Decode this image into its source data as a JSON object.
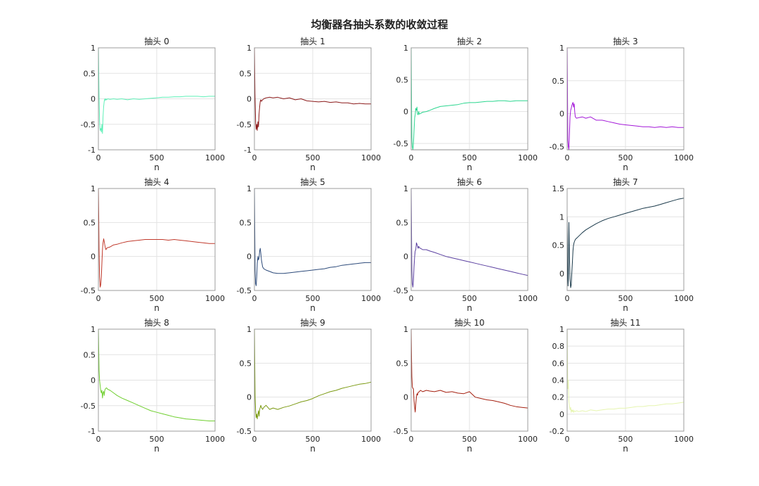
{
  "figure": {
    "title": "均衡器各抽头系数的收敛过程"
  },
  "chart_data": [
    {
      "type": "line",
      "title": "抽头 0",
      "xlabel": "n",
      "ylabel": "",
      "xlim": [
        0,
        1000
      ],
      "ylim": [
        -1,
        1
      ],
      "xticks": [
        0,
        500,
        1000
      ],
      "yticks": [
        -1,
        -0.5,
        0,
        0.5,
        1
      ],
      "grid": true,
      "color": "#5ff0b8",
      "x": [
        0,
        5,
        10,
        15,
        20,
        25,
        30,
        35,
        40,
        45,
        50,
        55,
        60,
        65,
        70,
        80,
        100,
        130,
        160,
        200,
        250,
        300,
        350,
        400,
        450,
        500,
        550,
        600,
        650,
        700,
        750,
        800,
        850,
        900,
        950,
        1000
      ],
      "y": [
        1,
        0.2,
        -0.45,
        -0.62,
        -0.58,
        -0.65,
        -0.5,
        -0.68,
        -0.35,
        -0.15,
        -0.05,
        0.0,
        -0.03,
        0.0,
        -0.02,
        0.0,
        -0.01,
        0.0,
        -0.01,
        0.0,
        -0.02,
        0.0,
        -0.01,
        0.0,
        0.01,
        0.02,
        0.03,
        0.03,
        0.04,
        0.04,
        0.05,
        0.05,
        0.05,
        0.04,
        0.05,
        0.05
      ]
    },
    {
      "type": "line",
      "title": "抽头 1",
      "xlabel": "n",
      "ylabel": "",
      "xlim": [
        0,
        1000
      ],
      "ylim": [
        -1,
        1
      ],
      "xticks": [
        0,
        500,
        1000
      ],
      "yticks": [
        -1,
        -0.5,
        0,
        0.5,
        1
      ],
      "grid": true,
      "color": "#8b1a1a",
      "x": [
        0,
        5,
        10,
        15,
        20,
        25,
        30,
        35,
        40,
        45,
        50,
        55,
        60,
        70,
        80,
        100,
        130,
        160,
        200,
        250,
        300,
        350,
        400,
        450,
        500,
        550,
        600,
        650,
        700,
        750,
        800,
        850,
        900,
        950,
        1000
      ],
      "y": [
        1,
        0.1,
        -0.45,
        -0.6,
        -0.5,
        -0.62,
        -0.45,
        -0.55,
        -0.3,
        -0.15,
        -0.05,
        -0.02,
        -0.05,
        -0.02,
        0.0,
        0.02,
        0.03,
        0.02,
        0.03,
        0.0,
        0.02,
        -0.02,
        0.0,
        -0.04,
        -0.05,
        -0.06,
        -0.05,
        -0.07,
        -0.06,
        -0.08,
        -0.08,
        -0.1,
        -0.09,
        -0.1,
        -0.1
      ]
    },
    {
      "type": "line",
      "title": "抽头 2",
      "xlabel": "n",
      "ylabel": "",
      "xlim": [
        0,
        1000
      ],
      "ylim": [
        -0.6,
        1
      ],
      "xticks": [
        0,
        500,
        1000
      ],
      "yticks": [
        -0.5,
        0,
        0.5,
        1
      ],
      "grid": true,
      "color": "#2bd68f",
      "x": [
        0,
        3,
        6,
        10,
        15,
        20,
        25,
        30,
        35,
        40,
        45,
        50,
        55,
        60,
        65,
        70,
        80,
        100,
        130,
        160,
        200,
        250,
        300,
        350,
        400,
        450,
        500,
        550,
        600,
        650,
        700,
        750,
        800,
        850,
        900,
        950,
        1000
      ],
      "y": [
        1,
        0.2,
        -0.4,
        -0.55,
        -0.6,
        -0.5,
        -0.3,
        -0.1,
        -0.05,
        0.05,
        0.02,
        0.07,
        -0.04,
        -0.05,
        0.0,
        -0.04,
        -0.03,
        -0.01,
        0.0,
        0.02,
        0.05,
        0.08,
        0.09,
        0.1,
        0.11,
        0.13,
        0.14,
        0.14,
        0.15,
        0.16,
        0.16,
        0.17,
        0.17,
        0.16,
        0.17,
        0.17,
        0.17
      ]
    },
    {
      "type": "line",
      "title": "抽头 3",
      "xlabel": "n",
      "ylabel": "",
      "xlim": [
        0,
        1000
      ],
      "ylim": [
        -0.55,
        1
      ],
      "xticks": [
        0,
        500,
        1000
      ],
      "yticks": [
        -0.5,
        0,
        0.5,
        1
      ],
      "grid": true,
      "color": "#a318d8",
      "x": [
        0,
        3,
        6,
        10,
        15,
        20,
        25,
        30,
        35,
        40,
        45,
        50,
        55,
        60,
        65,
        70,
        80,
        100,
        130,
        160,
        200,
        250,
        300,
        350,
        400,
        450,
        500,
        550,
        600,
        650,
        700,
        750,
        800,
        850,
        900,
        950,
        1000
      ],
      "y": [
        1,
        0.3,
        -0.4,
        -0.5,
        -0.55,
        -0.3,
        -0.05,
        0.05,
        0.08,
        0.12,
        0.15,
        0.17,
        0.1,
        0.15,
        0.03,
        -0.05,
        -0.07,
        -0.06,
        -0.05,
        -0.07,
        -0.05,
        -0.1,
        -0.1,
        -0.12,
        -0.14,
        -0.16,
        -0.17,
        -0.18,
        -0.19,
        -0.2,
        -0.2,
        -0.21,
        -0.2,
        -0.21,
        -0.2,
        -0.21,
        -0.21
      ]
    },
    {
      "type": "line",
      "title": "抽头 4",
      "xlabel": "n",
      "ylabel": "",
      "xlim": [
        0,
        1000
      ],
      "ylim": [
        -0.5,
        1
      ],
      "xticks": [
        0,
        500,
        1000
      ],
      "yticks": [
        -0.5,
        0,
        0.5,
        1
      ],
      "grid": true,
      "color": "#c0392b",
      "x": [
        0,
        3,
        6,
        10,
        15,
        20,
        25,
        30,
        35,
        40,
        45,
        50,
        55,
        60,
        65,
        70,
        80,
        100,
        130,
        160,
        200,
        250,
        300,
        350,
        400,
        450,
        500,
        550,
        600,
        650,
        700,
        750,
        800,
        850,
        900,
        950,
        1000
      ],
      "y": [
        1,
        0.6,
        0.1,
        -0.3,
        -0.45,
        -0.42,
        -0.3,
        -0.1,
        0.1,
        0.2,
        0.26,
        0.22,
        0.17,
        0.12,
        0.1,
        0.12,
        0.13,
        0.14,
        0.17,
        0.18,
        0.2,
        0.22,
        0.23,
        0.24,
        0.25,
        0.25,
        0.25,
        0.25,
        0.24,
        0.25,
        0.24,
        0.23,
        0.22,
        0.21,
        0.2,
        0.19,
        0.19
      ]
    },
    {
      "type": "line",
      "title": "抽头 5",
      "xlabel": "n",
      "ylabel": "",
      "xlim": [
        0,
        1000
      ],
      "ylim": [
        -0.5,
        1
      ],
      "xticks": [
        0,
        500,
        1000
      ],
      "yticks": [
        -0.5,
        0,
        0.5,
        1
      ],
      "grid": true,
      "color": "#2c4a7a",
      "x": [
        0,
        3,
        6,
        10,
        15,
        20,
        25,
        30,
        35,
        40,
        45,
        50,
        55,
        60,
        65,
        70,
        80,
        100,
        130,
        160,
        200,
        250,
        300,
        350,
        400,
        450,
        500,
        550,
        600,
        650,
        700,
        750,
        800,
        850,
        900,
        950,
        1000
      ],
      "y": [
        1,
        0.4,
        -0.2,
        -0.4,
        -0.43,
        -0.3,
        -0.1,
        0.0,
        -0.05,
        -0.02,
        0.08,
        0.12,
        0.05,
        -0.05,
        -0.1,
        -0.15,
        -0.18,
        -0.2,
        -0.22,
        -0.24,
        -0.25,
        -0.25,
        -0.24,
        -0.23,
        -0.22,
        -0.21,
        -0.2,
        -0.19,
        -0.18,
        -0.16,
        -0.15,
        -0.13,
        -0.12,
        -0.11,
        -0.1,
        -0.09,
        -0.09
      ]
    },
    {
      "type": "line",
      "title": "抽头 6",
      "xlabel": "n",
      "ylabel": "",
      "xlim": [
        0,
        1000
      ],
      "ylim": [
        -0.5,
        1
      ],
      "xticks": [
        0,
        500,
        1000
      ],
      "yticks": [
        -0.5,
        0,
        0.5,
        1
      ],
      "grid": true,
      "color": "#5a3fa0",
      "x": [
        0,
        3,
        6,
        10,
        15,
        20,
        25,
        30,
        35,
        40,
        45,
        50,
        55,
        60,
        65,
        70,
        80,
        100,
        130,
        160,
        200,
        250,
        300,
        350,
        400,
        450,
        500,
        550,
        600,
        650,
        700,
        750,
        800,
        850,
        900,
        950,
        1000
      ],
      "y": [
        1,
        0.4,
        -0.2,
        -0.4,
        -0.45,
        -0.35,
        -0.15,
        0.0,
        0.08,
        0.1,
        0.2,
        0.18,
        0.15,
        0.12,
        0.15,
        0.13,
        0.12,
        0.1,
        0.1,
        0.08,
        0.06,
        0.03,
        0.0,
        -0.02,
        -0.04,
        -0.06,
        -0.08,
        -0.1,
        -0.12,
        -0.14,
        -0.16,
        -0.18,
        -0.2,
        -0.22,
        -0.24,
        -0.26,
        -0.28
      ]
    },
    {
      "type": "line",
      "title": "抽头 7",
      "xlabel": "n",
      "ylabel": "",
      "xlim": [
        0,
        1000
      ],
      "ylim": [
        -0.3,
        1.5
      ],
      "xticks": [
        0,
        500,
        1000
      ],
      "yticks": [
        0,
        0.5,
        1,
        1.5
      ],
      "grid": true,
      "color": "#1b3a4b",
      "x": [
        0,
        2,
        4,
        6,
        8,
        10,
        15,
        20,
        25,
        30,
        35,
        40,
        45,
        50,
        55,
        60,
        70,
        80,
        100,
        130,
        160,
        200,
        250,
        300,
        350,
        400,
        450,
        500,
        550,
        600,
        650,
        700,
        750,
        800,
        850,
        900,
        950,
        1000
      ],
      "y": [
        1,
        0.7,
        0.2,
        -0.1,
        -0.22,
        -0.1,
        0.9,
        0.3,
        -0.1,
        -0.25,
        -0.2,
        0.0,
        0.2,
        0.4,
        0.5,
        0.55,
        0.6,
        0.62,
        0.66,
        0.72,
        0.77,
        0.82,
        0.88,
        0.93,
        0.97,
        1.0,
        1.03,
        1.06,
        1.09,
        1.12,
        1.15,
        1.17,
        1.19,
        1.22,
        1.25,
        1.28,
        1.31,
        1.33
      ]
    },
    {
      "type": "line",
      "title": "抽头 8",
      "xlabel": "n",
      "ylabel": "",
      "xlim": [
        0,
        1000
      ],
      "ylim": [
        -1,
        1
      ],
      "xticks": [
        0,
        500,
        1000
      ],
      "yticks": [
        -1,
        -0.5,
        0,
        0.5,
        1
      ],
      "grid": true,
      "color": "#6fcf2f",
      "x": [
        0,
        3,
        6,
        10,
        15,
        20,
        25,
        30,
        35,
        40,
        45,
        50,
        55,
        60,
        70,
        80,
        100,
        130,
        160,
        200,
        250,
        300,
        350,
        400,
        450,
        500,
        550,
        600,
        650,
        700,
        750,
        800,
        850,
        900,
        950,
        1000
      ],
      "y": [
        1,
        0.6,
        0.2,
        0.0,
        -0.1,
        -0.2,
        -0.25,
        -0.2,
        -0.35,
        -0.25,
        -0.22,
        -0.3,
        -0.2,
        -0.17,
        -0.15,
        -0.18,
        -0.2,
        -0.25,
        -0.3,
        -0.35,
        -0.4,
        -0.45,
        -0.5,
        -0.55,
        -0.6,
        -0.63,
        -0.66,
        -0.69,
        -0.72,
        -0.74,
        -0.76,
        -0.77,
        -0.78,
        -0.79,
        -0.8,
        -0.8
      ]
    },
    {
      "type": "line",
      "title": "抽头 9",
      "xlabel": "n",
      "ylabel": "",
      "xlim": [
        0,
        1000
      ],
      "ylim": [
        -0.5,
        1
      ],
      "xticks": [
        0,
        500,
        1000
      ],
      "yticks": [
        -0.5,
        0,
        0.5,
        1
      ],
      "grid": true,
      "color": "#7b9a12",
      "x": [
        0,
        3,
        6,
        10,
        15,
        20,
        25,
        30,
        35,
        40,
        45,
        50,
        55,
        60,
        70,
        80,
        100,
        130,
        160,
        200,
        250,
        300,
        350,
        400,
        450,
        500,
        550,
        600,
        650,
        700,
        750,
        800,
        850,
        900,
        950,
        1000
      ],
      "y": [
        1,
        0.5,
        0.0,
        -0.2,
        -0.3,
        -0.25,
        -0.32,
        -0.25,
        -0.2,
        -0.28,
        -0.18,
        -0.15,
        -0.12,
        -0.15,
        -0.18,
        -0.15,
        -0.12,
        -0.18,
        -0.16,
        -0.18,
        -0.15,
        -0.13,
        -0.1,
        -0.07,
        -0.05,
        -0.02,
        0.02,
        0.05,
        0.08,
        0.1,
        0.13,
        0.15,
        0.17,
        0.19,
        0.2,
        0.22
      ]
    },
    {
      "type": "line",
      "title": "抽头 10",
      "xlabel": "n",
      "ylabel": "",
      "xlim": [
        0,
        1000
      ],
      "ylim": [
        -0.5,
        1
      ],
      "xticks": [
        0,
        500,
        1000
      ],
      "yticks": [
        -0.5,
        0,
        0.5,
        1
      ],
      "grid": true,
      "color": "#a52010",
      "x": [
        0,
        3,
        6,
        10,
        15,
        20,
        25,
        30,
        35,
        40,
        45,
        50,
        55,
        60,
        70,
        80,
        100,
        130,
        160,
        200,
        250,
        300,
        350,
        400,
        450,
        500,
        550,
        600,
        650,
        700,
        750,
        800,
        850,
        900,
        950,
        1000
      ],
      "y": [
        1,
        0.6,
        0.3,
        0.15,
        0.13,
        0.12,
        -0.05,
        -0.15,
        -0.22,
        -0.1,
        0.0,
        0.05,
        0.03,
        0.07,
        0.08,
        0.1,
        0.08,
        0.1,
        0.09,
        0.08,
        0.1,
        0.07,
        0.08,
        0.06,
        0.05,
        0.08,
        0.0,
        -0.02,
        -0.04,
        -0.05,
        -0.07,
        -0.09,
        -0.12,
        -0.14,
        -0.15,
        -0.16
      ]
    },
    {
      "type": "line",
      "title": "抽头 11",
      "xlabel": "n",
      "ylabel": "",
      "xlim": [
        0,
        1000
      ],
      "ylim": [
        -0.2,
        1
      ],
      "xticks": [
        0,
        500,
        1000
      ],
      "yticks": [
        -0.2,
        0,
        0.2,
        0.4,
        0.6,
        0.8,
        1
      ],
      "grid": true,
      "color": "#e6f5b0",
      "x": [
        0,
        3,
        6,
        10,
        15,
        20,
        25,
        30,
        35,
        40,
        45,
        50,
        55,
        60,
        70,
        80,
        100,
        130,
        160,
        200,
        250,
        300,
        350,
        400,
        450,
        500,
        550,
        600,
        650,
        700,
        750,
        800,
        850,
        900,
        950,
        1000
      ],
      "y": [
        1,
        0.6,
        0.3,
        0.4,
        0.15,
        0.1,
        0.05,
        0.08,
        0.02,
        0.05,
        0.03,
        0.05,
        0.02,
        0.04,
        0.03,
        0.04,
        0.03,
        0.04,
        0.03,
        0.05,
        0.04,
        0.05,
        0.06,
        0.06,
        0.07,
        0.07,
        0.08,
        0.09,
        0.09,
        0.1,
        0.1,
        0.11,
        0.12,
        0.12,
        0.13,
        0.14
      ]
    }
  ]
}
